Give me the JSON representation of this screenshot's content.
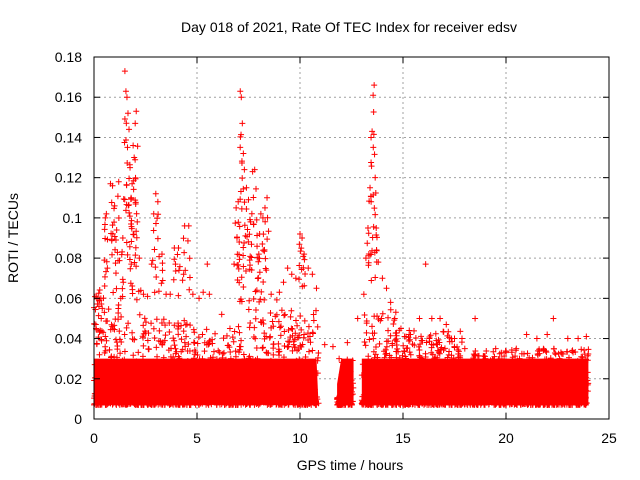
{
  "chart_data": {
    "type": "scatter",
    "title": "Day 018 of 2021, Rate Of TEC Index for receiver edsv",
    "xlabel": "GPS time / hours",
    "ylabel": "ROTI / TECUs",
    "xlim": [
      0,
      25
    ],
    "ylim": [
      0,
      0.18
    ],
    "xticks": [
      0,
      5,
      10,
      15,
      20,
      25
    ],
    "xtick_labels": [
      "0",
      "5",
      "10",
      "15",
      "20",
      "25"
    ],
    "yticks": [
      0,
      0.02,
      0.04,
      0.06,
      0.08,
      0.1,
      0.12,
      0.14,
      0.16,
      0.18
    ],
    "ytick_labels": [
      "0",
      "0.02",
      "0.04",
      "0.06",
      "0.08",
      "0.1",
      "0.12",
      "0.14",
      "0.16",
      "0.18"
    ],
    "grid": true,
    "marker": "plus",
    "color": "#ff0000",
    "series": [
      {
        "points": [
          [
            0.1,
            0.045
          ],
          [
            0.15,
            0.06
          ],
          [
            0.2,
            0.028
          ],
          [
            0.25,
            0.026
          ],
          [
            0.3,
            0.044
          ],
          [
            0.35,
            0.05
          ],
          [
            0.4,
            0.055
          ],
          [
            0.5,
            0.079
          ],
          [
            0.55,
            0.1
          ],
          [
            0.6,
            0.102
          ],
          [
            0.65,
            0.075
          ],
          [
            0.8,
            0.117
          ],
          [
            0.9,
            0.116
          ],
          [
            1.0,
            0.106
          ],
          [
            1.1,
            0.094
          ],
          [
            1.2,
            0.118
          ],
          [
            1.3,
            0.06
          ],
          [
            1.4,
            0.09
          ],
          [
            1.5,
            0.173
          ],
          [
            1.55,
            0.163
          ],
          [
            1.6,
            0.16
          ],
          [
            1.65,
            0.152
          ],
          [
            1.7,
            0.144
          ],
          [
            1.75,
            0.125
          ],
          [
            1.8,
            0.11
          ],
          [
            1.85,
            0.117
          ],
          [
            1.9,
            0.136
          ],
          [
            1.95,
            0.13
          ],
          [
            2.0,
            0.147
          ],
          [
            2.05,
            0.153
          ],
          [
            2.1,
            0.098
          ],
          [
            2.2,
            0.08
          ],
          [
            2.4,
            0.062
          ],
          [
            2.6,
            0.061
          ],
          [
            2.8,
            0.077
          ],
          [
            2.9,
            0.102
          ],
          [
            3.0,
            0.112
          ],
          [
            3.1,
            0.108
          ],
          [
            3.3,
            0.082
          ],
          [
            3.5,
            0.062
          ],
          [
            3.7,
            0.062
          ],
          [
            3.9,
            0.085
          ],
          [
            4.1,
            0.085
          ],
          [
            4.3,
            0.069
          ],
          [
            4.4,
            0.096
          ],
          [
            4.6,
            0.096
          ],
          [
            4.8,
            0.062
          ],
          [
            5.1,
            0.06
          ],
          [
            5.3,
            0.063
          ],
          [
            5.5,
            0.077
          ],
          [
            5.6,
            0.062
          ],
          [
            6.2,
            0.052
          ],
          [
            6.6,
            0.045
          ],
          [
            6.8,
            0.077
          ],
          [
            6.9,
            0.105
          ],
          [
            7.0,
            0.108
          ],
          [
            7.05,
            0.088
          ],
          [
            7.1,
            0.163
          ],
          [
            7.15,
            0.16
          ],
          [
            7.2,
            0.147
          ],
          [
            7.25,
            0.132
          ],
          [
            7.3,
            0.124
          ],
          [
            7.4,
            0.115
          ],
          [
            7.5,
            0.109
          ],
          [
            7.6,
            0.098
          ],
          [
            7.7,
            0.123
          ],
          [
            7.8,
            0.124
          ],
          [
            7.9,
            0.099
          ],
          [
            8.0,
            0.082
          ],
          [
            8.1,
            0.102
          ],
          [
            8.2,
            0.1
          ],
          [
            8.3,
            0.105
          ],
          [
            8.4,
            0.11
          ],
          [
            8.6,
            0.062
          ],
          [
            8.8,
            0.051
          ],
          [
            9.0,
            0.063
          ],
          [
            9.2,
            0.068
          ],
          [
            9.4,
            0.075
          ],
          [
            9.6,
            0.072
          ],
          [
            9.8,
            0.07
          ],
          [
            10.0,
            0.092
          ],
          [
            10.1,
            0.09
          ],
          [
            10.2,
            0.082
          ],
          [
            10.4,
            0.075
          ],
          [
            10.6,
            0.072
          ],
          [
            10.8,
            0.065
          ],
          [
            11.2,
            0.037
          ],
          [
            11.6,
            0.036
          ],
          [
            11.9,
            0.03
          ],
          [
            12.3,
            0.038
          ],
          [
            12.8,
            0.05
          ],
          [
            13.1,
            0.062
          ],
          [
            13.2,
            0.08
          ],
          [
            13.3,
            0.095
          ],
          [
            13.4,
            0.115
          ],
          [
            13.45,
            0.14
          ],
          [
            13.5,
            0.143
          ],
          [
            13.55,
            0.161
          ],
          [
            13.6,
            0.166
          ],
          [
            13.65,
            0.12
          ],
          [
            13.7,
            0.095
          ],
          [
            13.8,
            0.078
          ],
          [
            14.0,
            0.07
          ],
          [
            14.2,
            0.065
          ],
          [
            14.4,
            0.058
          ],
          [
            14.6,
            0.05
          ],
          [
            14.9,
            0.045
          ],
          [
            15.3,
            0.042
          ],
          [
            15.8,
            0.05
          ],
          [
            16.1,
            0.077
          ],
          [
            16.4,
            0.05
          ],
          [
            16.8,
            0.05
          ],
          [
            17.1,
            0.047
          ],
          [
            17.5,
            0.04
          ],
          [
            18.0,
            0.035
          ],
          [
            18.5,
            0.05
          ],
          [
            19.0,
            0.03
          ],
          [
            19.5,
            0.035
          ],
          [
            20.0,
            0.033
          ],
          [
            20.5,
            0.035
          ],
          [
            21.0,
            0.042
          ],
          [
            21.5,
            0.04
          ],
          [
            22.0,
            0.042
          ],
          [
            22.3,
            0.05
          ],
          [
            22.6,
            0.03
          ],
          [
            23.0,
            0.04
          ],
          [
            23.5,
            0.04
          ],
          [
            23.9,
            0.041
          ]
        ]
      }
    ]
  }
}
